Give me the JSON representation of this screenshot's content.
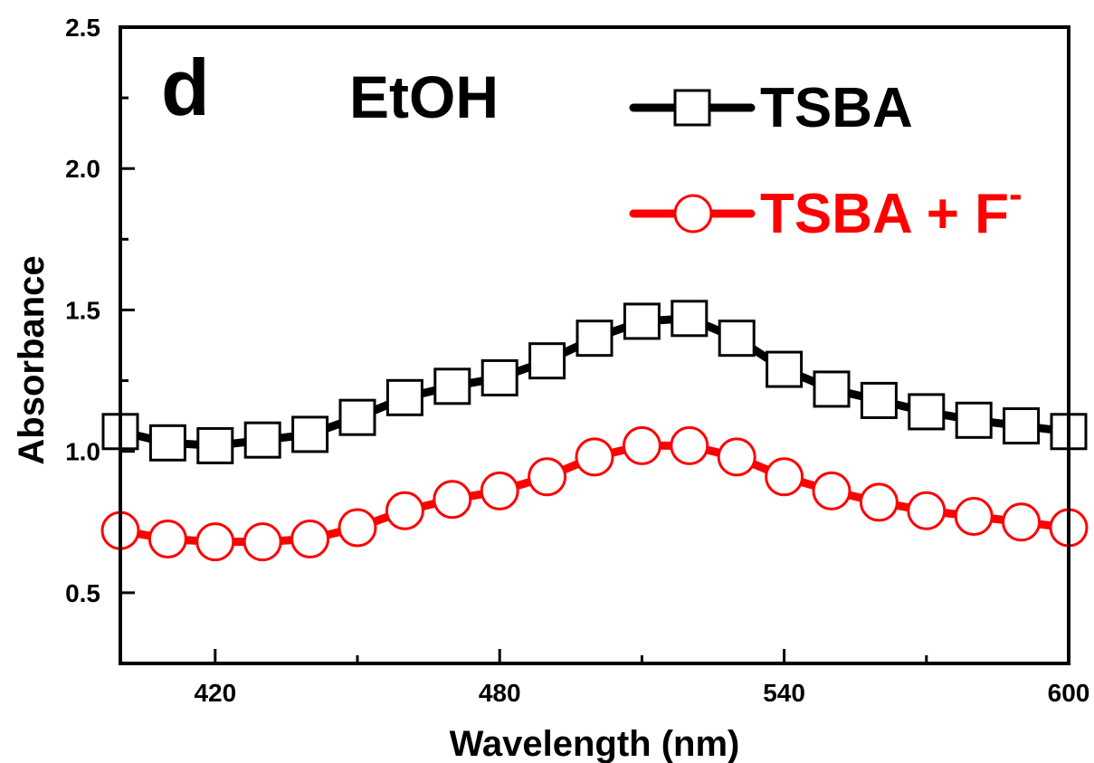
{
  "chart_data": {
    "type": "line",
    "panel_label": "d",
    "annotation": "EtOH",
    "xlabel": "Wavelength (nm)",
    "ylabel": "Absorbance",
    "xlim": [
      400,
      600
    ],
    "ylim": [
      0.25,
      2.5
    ],
    "xticks": [
      420,
      480,
      540,
      600
    ],
    "x_minor_ticks": [
      450,
      510,
      570
    ],
    "yticks": [
      "0.5",
      "1.0",
      "1.5",
      "2.0",
      "2.5"
    ],
    "y_minor_ticks": [
      0.75,
      1.25,
      1.75,
      2.25
    ],
    "grid": false,
    "legend_position": "top-right",
    "x": [
      400,
      410,
      420,
      430,
      440,
      450,
      460,
      470,
      480,
      490,
      500,
      510,
      520,
      530,
      540,
      550,
      560,
      570,
      580,
      590,
      600
    ],
    "series": [
      {
        "name": "TSBA",
        "color": "#000000",
        "marker": "square",
        "values": [
          1.07,
          1.03,
          1.02,
          1.04,
          1.06,
          1.12,
          1.19,
          1.23,
          1.26,
          1.32,
          1.4,
          1.46,
          1.47,
          1.4,
          1.29,
          1.22,
          1.18,
          1.14,
          1.11,
          1.09,
          1.07
        ]
      },
      {
        "name": "TSBA + F",
        "name_superscript": "-",
        "color": "#ff0000",
        "marker": "circle",
        "values": [
          0.72,
          0.69,
          0.68,
          0.68,
          0.69,
          0.73,
          0.79,
          0.83,
          0.86,
          0.91,
          0.98,
          1.02,
          1.02,
          0.98,
          0.91,
          0.86,
          0.82,
          0.79,
          0.77,
          0.75,
          0.73
        ]
      }
    ]
  }
}
